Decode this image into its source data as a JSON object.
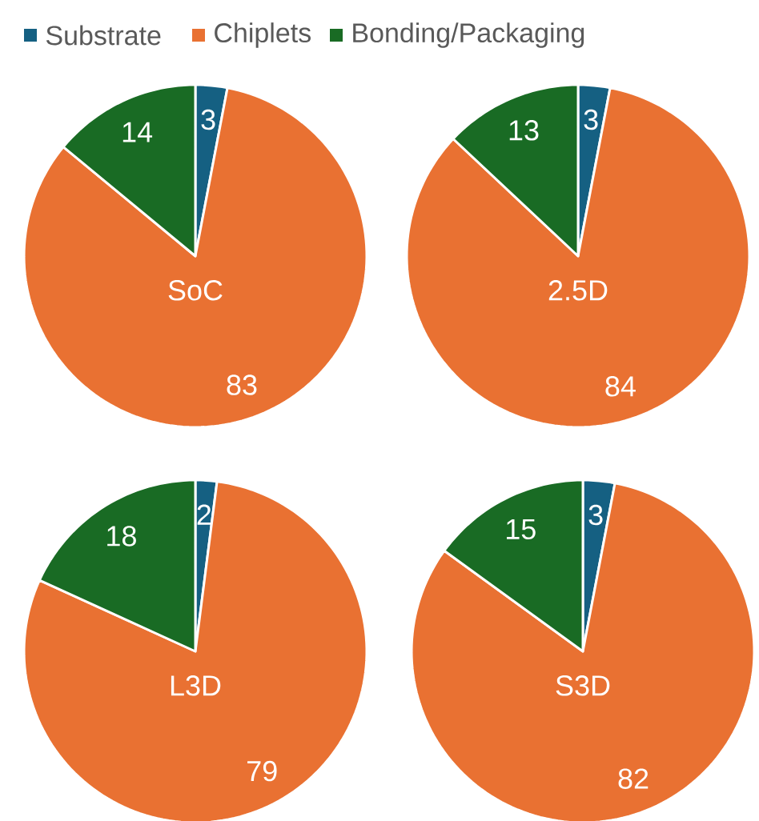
{
  "chart_data": [
    {
      "type": "pie",
      "title": "SoC",
      "categories": [
        "Substrate",
        "Chiplets",
        "Bonding/Packaging"
      ],
      "values": [
        3,
        83,
        14
      ],
      "colors": [
        "#156082",
        "#e97132",
        "#196b24"
      ],
      "data_labels": true,
      "legend": "top"
    },
    {
      "type": "pie",
      "title": "2.5D",
      "values": [
        3,
        84,
        13
      ],
      "colors": [
        "#156082",
        "#e97132",
        "#196b24"
      ],
      "data_labels": true
    },
    {
      "type": "pie",
      "title": "L3D",
      "values": [
        2,
        79,
        18
      ],
      "colors": [
        "#156082",
        "#e97132",
        "#196b24"
      ],
      "data_labels": true
    },
    {
      "type": "pie",
      "title": "S3D",
      "values": [
        3,
        82,
        15
      ],
      "colors": [
        "#156082",
        "#e97132",
        "#196b24"
      ],
      "data_labels": true
    }
  ]
}
